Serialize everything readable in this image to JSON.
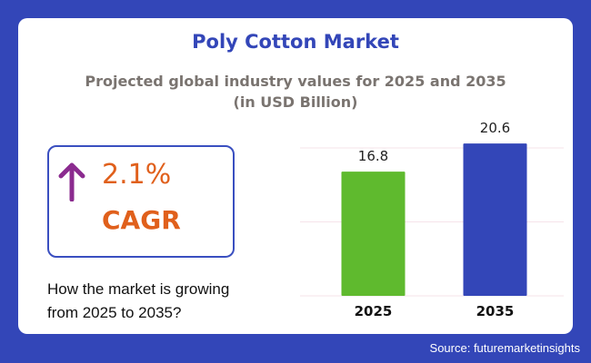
{
  "title": "Poly Cotton Market",
  "subtitle_line1": "Projected global industry values for 2025 and 2035",
  "subtitle_line2": "(in USD Billion)",
  "cagr": {
    "value": "2.1%",
    "label": "CAGR",
    "icon": "arrow-up-icon"
  },
  "question": {
    "line1": "How the market is growing",
    "line2": "from 2025 to 2035?"
  },
  "source": "Source: futuremarketinsights",
  "colors": {
    "background": "#3346b8",
    "bar_2025": "#5fba2e",
    "bar_2035": "#3346b8",
    "accent": "#e0601c",
    "arrow": "#8b2b8f"
  },
  "chart_data": {
    "type": "bar",
    "title": "Poly Cotton Market",
    "categories": [
      "2025",
      "2035"
    ],
    "values": [
      16.8,
      20.6
    ],
    "value_labels": [
      "16.8",
      "20.6"
    ],
    "xlabel": "",
    "ylabel": "USD Billion",
    "ylim": [
      0,
      20
    ],
    "gridlines": [
      0,
      10,
      20
    ],
    "grid": true
  }
}
